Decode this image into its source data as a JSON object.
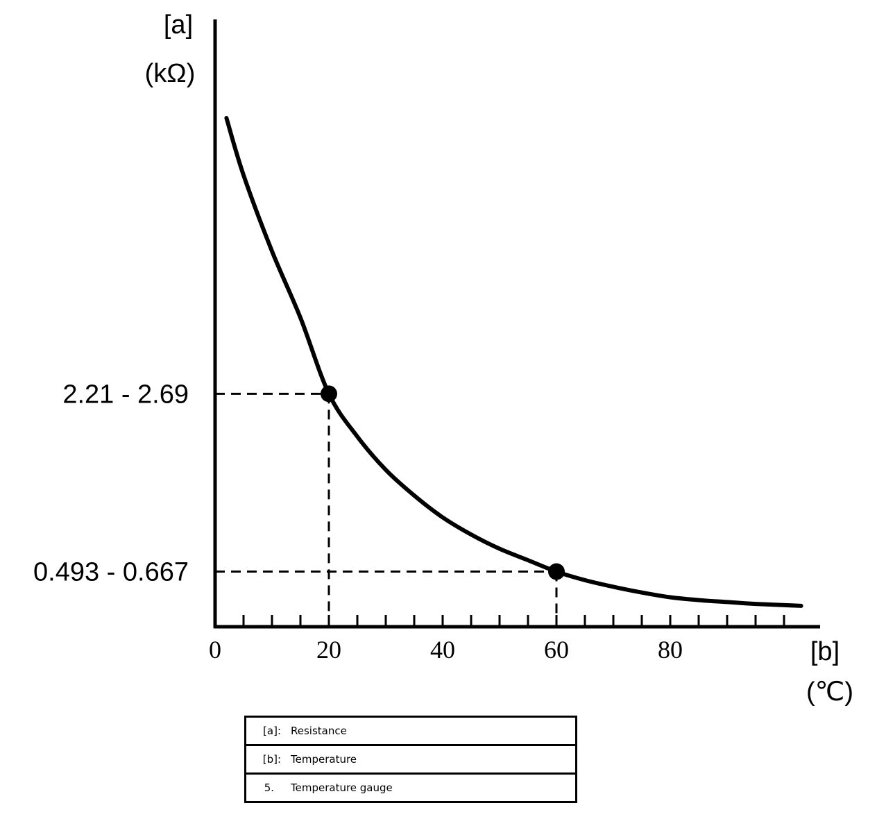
{
  "chart_data": {
    "type": "line",
    "y_axis": {
      "label": "[a]",
      "unit": "(kΩ)"
    },
    "x_axis": {
      "label": "[b]",
      "unit": "(℃)",
      "ticks": [
        "0",
        "20",
        "40",
        "60",
        "80"
      ],
      "xlim": [
        0,
        100
      ],
      "minor_tick_step": 5
    },
    "grid": false,
    "series": [
      {
        "x": [
          2,
          5,
          10,
          15,
          20,
          25,
          30,
          35,
          40,
          45,
          50,
          55,
          60,
          65,
          70,
          75,
          80,
          85,
          90,
          95,
          103
        ],
        "y": [
          5.35,
          4.75,
          3.95,
          3.25,
          2.45,
          2.0,
          1.65,
          1.38,
          1.15,
          0.97,
          0.82,
          0.7,
          0.58,
          0.49,
          0.42,
          0.36,
          0.31,
          0.28,
          0.26,
          0.24,
          0.22
        ]
      }
    ],
    "points": [
      {
        "x": 20,
        "y": 2.45
      },
      {
        "x": 60,
        "y": 0.58
      }
    ],
    "annotations": [
      {
        "text": "2.21 - 2.69",
        "x": 20,
        "y": 2.45
      },
      {
        "text": "0.493 - 0.667",
        "x": 60,
        "y": 0.58
      }
    ]
  },
  "legend": {
    "rows": [
      {
        "key": "[a]:",
        "value": "Resistance"
      },
      {
        "key": "[b]:",
        "value": "Temperature"
      },
      {
        "key": "5.",
        "value": "Temperature gauge"
      }
    ]
  }
}
